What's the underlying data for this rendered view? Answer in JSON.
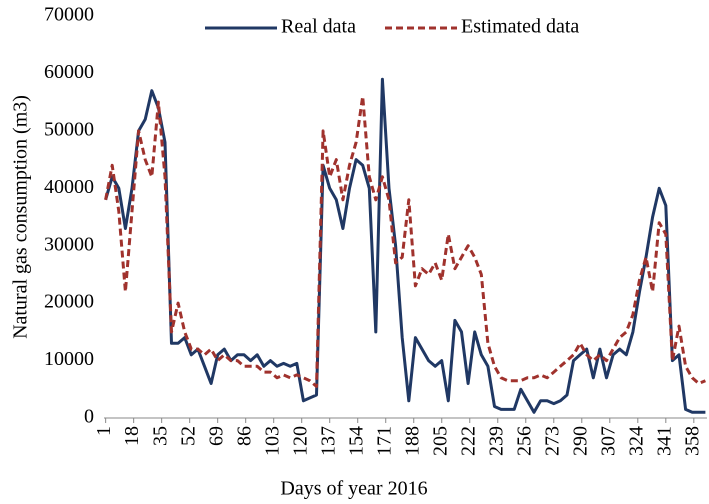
{
  "chart_data": {
    "type": "line",
    "x_label": "Days of year 2016",
    "y_label": "Natural gas consumption (m3)",
    "x": [
      1,
      5,
      9,
      13,
      17,
      21,
      25,
      29,
      33,
      37,
      41,
      45,
      49,
      53,
      57,
      61,
      65,
      69,
      73,
      77,
      81,
      85,
      89,
      93,
      97,
      101,
      105,
      109,
      113,
      117,
      121,
      125,
      129,
      133,
      137,
      141,
      145,
      149,
      153,
      157,
      161,
      165,
      169,
      173,
      177,
      181,
      185,
      189,
      193,
      197,
      201,
      205,
      209,
      213,
      217,
      221,
      225,
      229,
      233,
      237,
      241,
      245,
      249,
      253,
      257,
      261,
      265,
      269,
      273,
      277,
      281,
      285,
      289,
      293,
      297,
      301,
      305,
      309,
      313,
      317,
      321,
      325,
      329,
      333,
      337,
      341,
      345,
      349,
      353,
      357,
      361,
      365
    ],
    "series": [
      {
        "name": "Real data",
        "color": "#203864",
        "dashed": false,
        "values": [
          38000,
          42000,
          40000,
          33000,
          40000,
          50000,
          52000,
          57000,
          54000,
          48000,
          13000,
          13000,
          14000,
          11000,
          12000,
          9000,
          6000,
          11000,
          12000,
          10000,
          11000,
          11000,
          10000,
          11000,
          9000,
          10000,
          9000,
          9500,
          9000,
          9500,
          3000,
          3500,
          4000,
          44000,
          40000,
          38000,
          33000,
          40000,
          45000,
          44000,
          40000,
          15000,
          59000,
          40000,
          30000,
          14000,
          3000,
          14000,
          12000,
          10000,
          9000,
          10000,
          3000,
          17000,
          15000,
          6000,
          15000,
          11000,
          9000,
          2000,
          1500,
          1500,
          1500,
          5000,
          3000,
          1000,
          3000,
          3000,
          2500,
          3000,
          4000,
          10000,
          11000,
          12000,
          7000,
          12000,
          7000,
          11000,
          12000,
          11000,
          15000,
          22000,
          28000,
          35000,
          40000,
          37000,
          10000,
          11000,
          1500,
          1000,
          1000,
          1000
        ]
      },
      {
        "name": "Estimated data",
        "color": "#a0322d",
        "dashed": true,
        "values": [
          38000,
          44000,
          36000,
          22000,
          36000,
          50000,
          45000,
          42000,
          55000,
          42000,
          15000,
          20000,
          15000,
          12000,
          12000,
          11000,
          12000,
          10000,
          11000,
          10000,
          10000,
          9000,
          9000,
          9000,
          8000,
          8000,
          7000,
          7500,
          7000,
          7500,
          7000,
          6500,
          5500,
          50000,
          42000,
          45000,
          38000,
          44000,
          48000,
          56000,
          42000,
          38000,
          42000,
          38000,
          27000,
          28000,
          38000,
          23000,
          26000,
          25000,
          27000,
          24000,
          32000,
          26000,
          28000,
          30000,
          28000,
          25000,
          13000,
          9000,
          7000,
          6500,
          6500,
          6500,
          7000,
          7000,
          7500,
          7000,
          8000,
          9000,
          10000,
          11000,
          13000,
          11000,
          10000,
          11000,
          10000,
          12000,
          14000,
          15000,
          18000,
          24000,
          28000,
          22000,
          34000,
          32000,
          10000,
          16000,
          9000,
          7000,
          6000,
          6500
        ]
      }
    ],
    "xlim": [
      0,
      366
    ],
    "xticks": [
      1,
      18,
      35,
      52,
      69,
      86,
      103,
      120,
      137,
      154,
      171,
      188,
      205,
      222,
      239,
      256,
      273,
      290,
      307,
      324,
      341,
      358
    ],
    "ylim": [
      0,
      70000
    ],
    "yticks": [
      0,
      10000,
      20000,
      30000,
      40000,
      50000,
      60000,
      70000
    ],
    "grid": false,
    "legend": "top"
  }
}
